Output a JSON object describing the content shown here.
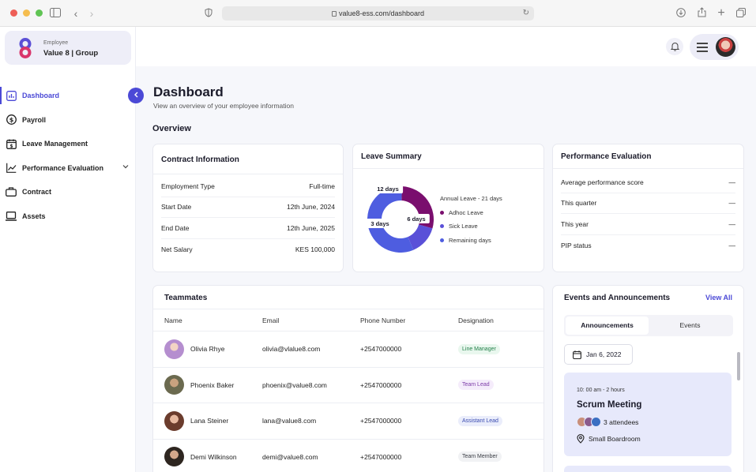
{
  "browser": {
    "url": "value8-ess.com/dashboard"
  },
  "org": {
    "subtitle": "Employee",
    "name": "Value 8 | Group"
  },
  "sidebar": {
    "items": [
      {
        "label": "Dashboard",
        "icon": "chart-box-icon",
        "active": true
      },
      {
        "label": "Payroll",
        "icon": "dollar-circle-icon"
      },
      {
        "label": "Leave Management",
        "icon": "calendar-dollar-icon"
      },
      {
        "label": "Performance Evaluation",
        "icon": "trend-line-icon",
        "expandable": true
      },
      {
        "label": "Contract",
        "icon": "briefcase-icon"
      },
      {
        "label": "Assets",
        "icon": "laptop-icon"
      }
    ]
  },
  "header": {
    "title": "Dashboard",
    "subtitle": "View an overview of your employee information",
    "section": "Overview"
  },
  "contract": {
    "title": "Contract Information",
    "rows": [
      {
        "label": "Employment Type",
        "value": "Full-time"
      },
      {
        "label": "Start Date",
        "value": "12th June, 2024"
      },
      {
        "label": "End Date",
        "value": "12th June, 2025"
      },
      {
        "label": "Net Salary",
        "value": "KES 100,000"
      }
    ]
  },
  "leave": {
    "title": "Leave Summary",
    "legend_head": "Annual Leave - 21 days",
    "chart_data": {
      "type": "pie",
      "slices": [
        {
          "label": "Adhoc Leave",
          "value": 6,
          "display": "6 days",
          "color": "#7a0e6e"
        },
        {
          "label": "Sick Leave",
          "value": 3,
          "display": "3 days",
          "color": "#5a50d8"
        },
        {
          "label": "Remaining days",
          "value": 12,
          "display": "12 days",
          "color": "#4e5de0"
        }
      ]
    }
  },
  "performance": {
    "title": "Performance Evaluation",
    "rows": [
      {
        "label": "Average performance score",
        "value": "—"
      },
      {
        "label": "This quarter",
        "value": "—"
      },
      {
        "label": "This year",
        "value": "—"
      },
      {
        "label": "PIP status",
        "value": "—"
      }
    ]
  },
  "teammates": {
    "title": "Teammates",
    "columns": [
      "Name",
      "Email",
      "Phone Number",
      "Designation"
    ],
    "rows": [
      {
        "name": "Olivia Rhye",
        "email": "olivia@vlalue8.com",
        "phone": "+2547000000",
        "designation": "Line Manager",
        "badge_bg": "#e9f7ee",
        "badge_fg": "#23804a"
      },
      {
        "name": "Phoenix Baker",
        "email": "phoenix@value8.com",
        "phone": "+2547000000",
        "designation": "Team Lead",
        "badge_bg": "#f5ecfb",
        "badge_fg": "#7c3aa8"
      },
      {
        "name": "Lana Steiner",
        "email": "lana@value8.com",
        "phone": "+2547000000",
        "designation": "Assistant Lead",
        "badge_bg": "#eaedfb",
        "badge_fg": "#3a4bb0"
      },
      {
        "name": "Demi Wilkinson",
        "email": "demi@value8.com",
        "phone": "+2547000000",
        "designation": "Team Member",
        "badge_bg": "#f1f2f4",
        "badge_fg": "#3b3d45"
      }
    ]
  },
  "events": {
    "title": "Events and Announcements",
    "view_all": "View All",
    "tabs": [
      "Announcements",
      "Events"
    ],
    "date": "Jan 6, 2022",
    "card": {
      "time": "10: 00 am - 2 hours",
      "title": "Scrum Meeting",
      "attendees": "3 attendees",
      "location": "Small Boardroom"
    }
  }
}
